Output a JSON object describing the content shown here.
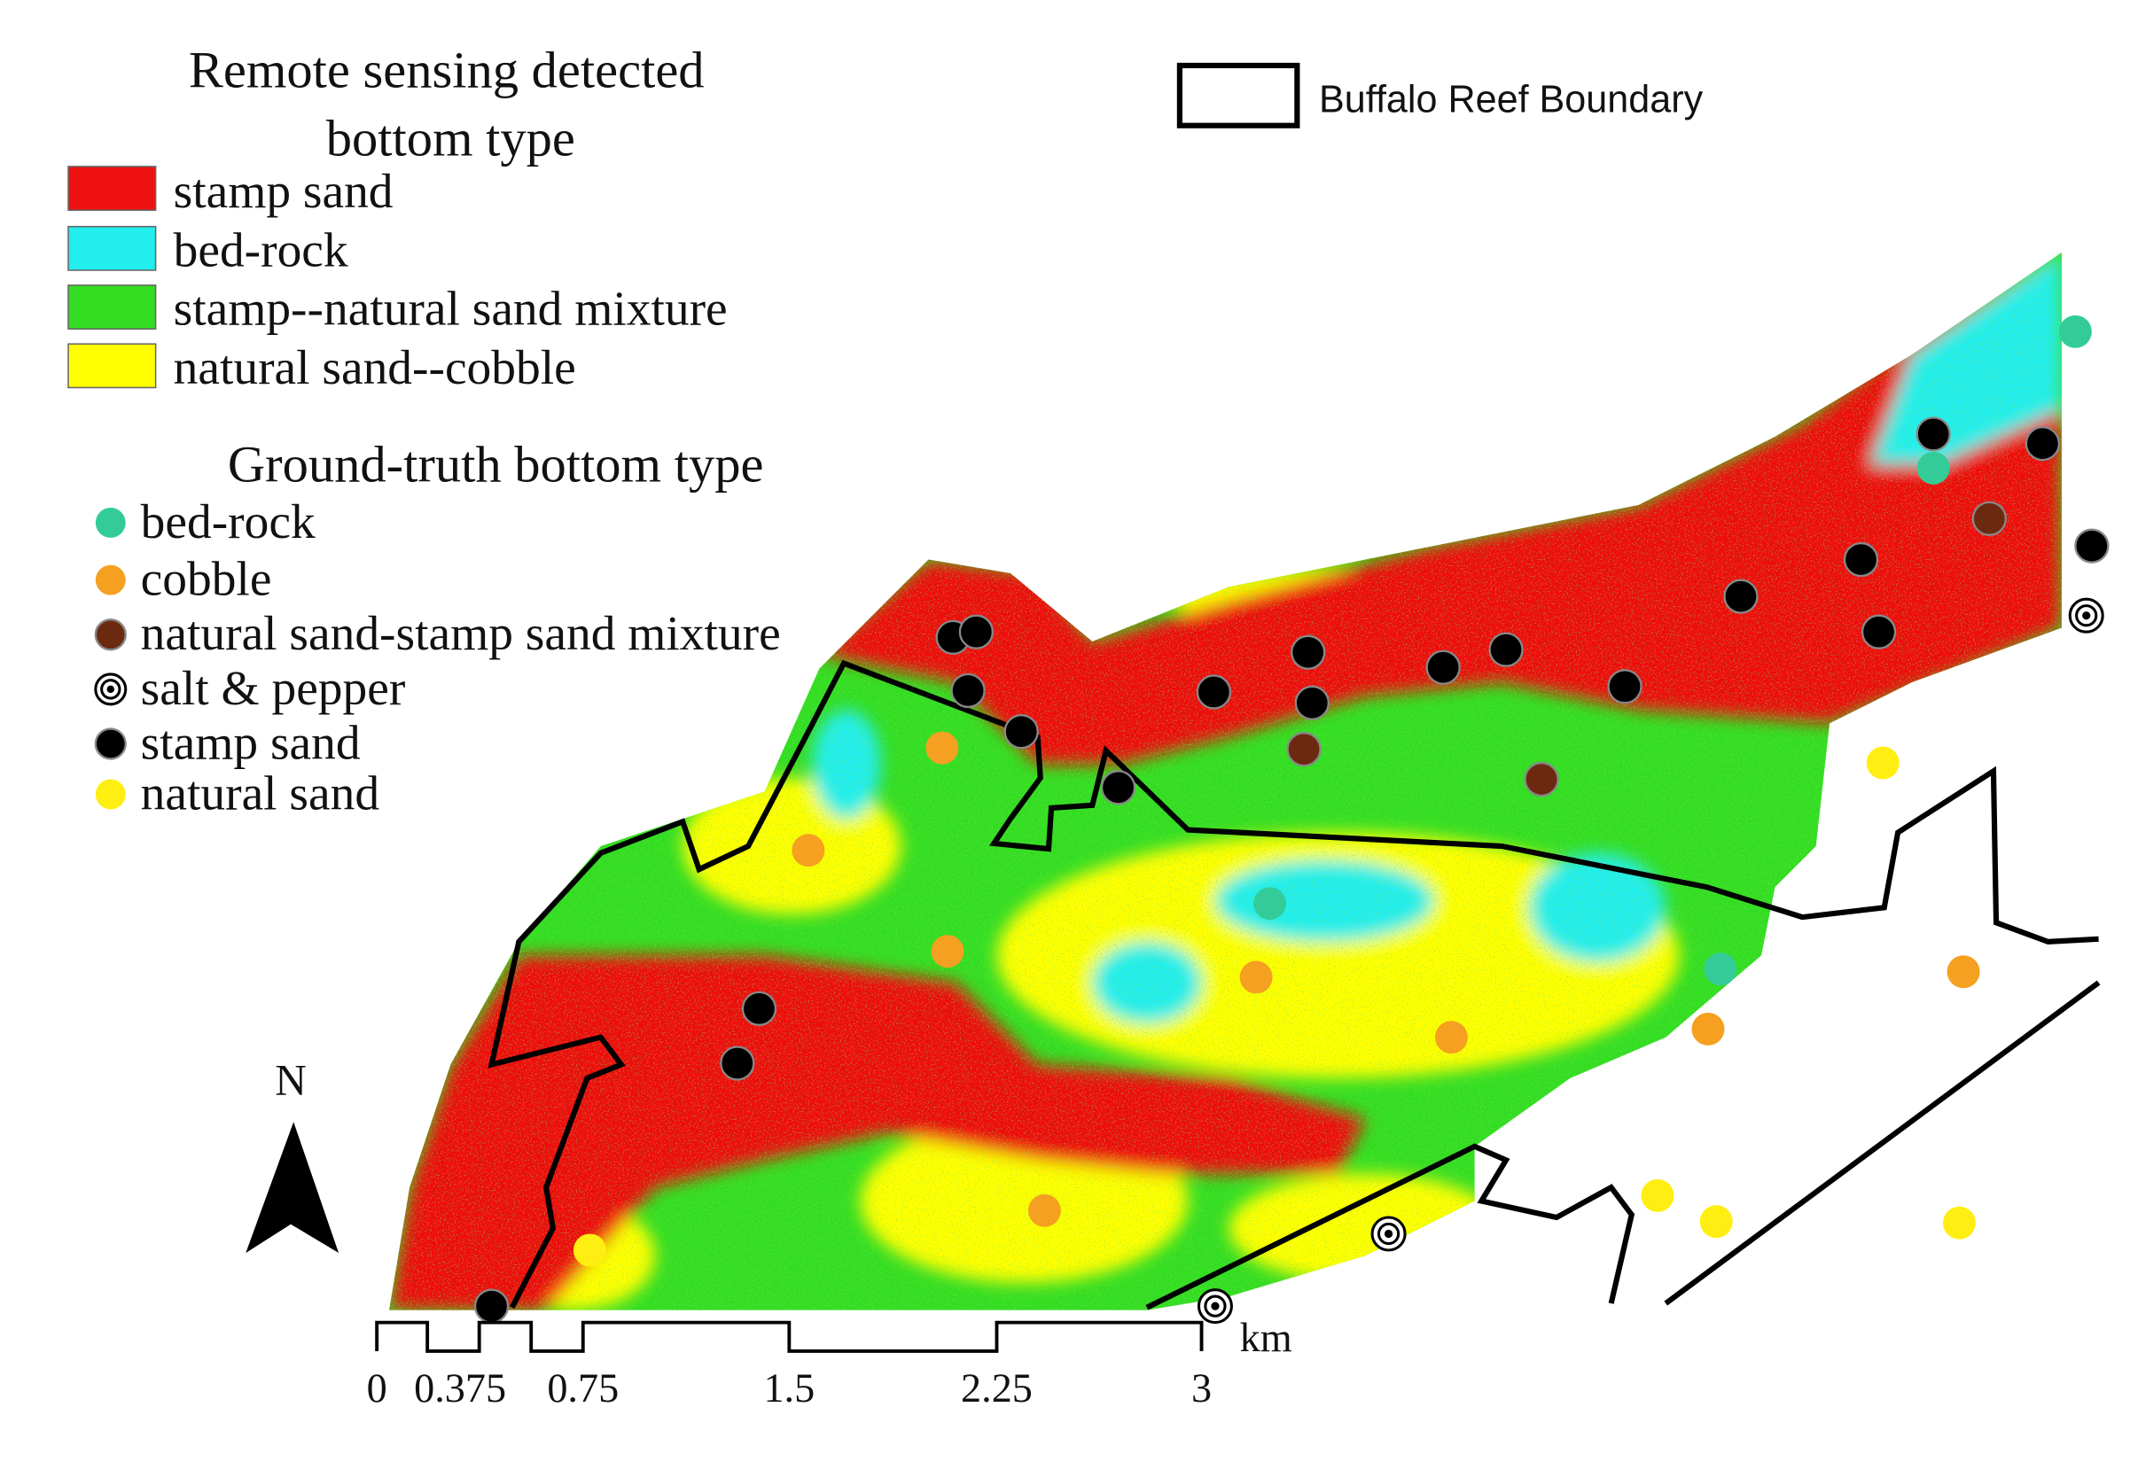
{
  "legend_remote": {
    "title": [
      "Remote sensing detected",
      "bottom type"
    ],
    "items": [
      "stamp sand",
      "bed-rock",
      "stamp--natural sand mixture",
      "natural sand--cobble"
    ]
  },
  "legend_ground": {
    "title": "Ground-truth bottom type",
    "items": [
      "bed-rock",
      "cobble",
      "natural sand-stamp sand mixture",
      "salt & pepper",
      "stamp sand",
      "natural sand"
    ]
  },
  "boundary_legend": "Buffalo Reef Boundary",
  "north_label": "N",
  "scale_bar": {
    "unit": "km",
    "labels": [
      "0",
      "0.375",
      "0.75",
      "1.5",
      "2.25",
      "3"
    ]
  }
}
